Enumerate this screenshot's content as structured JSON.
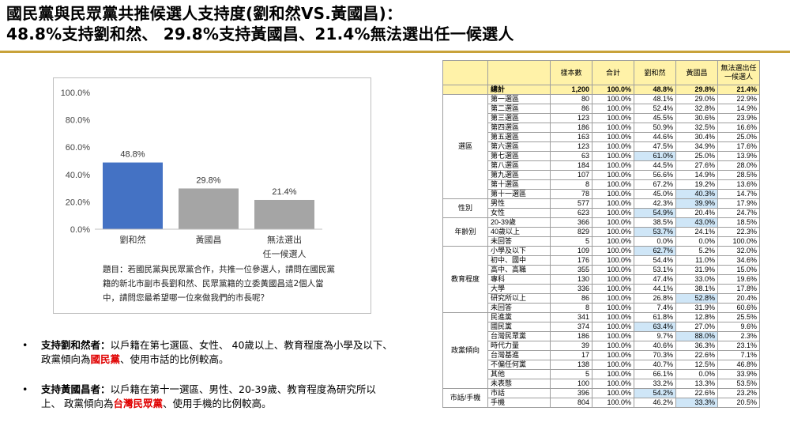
{
  "title_line1": "國民黨與民眾黨共推候選人支持度(劉和然VS.黃國昌)：",
  "title_line2": "48.8%支持劉和然、 29.8%支持黃國昌、21.4%無法選出任一候選人",
  "chart_data": {
    "type": "bar",
    "categories": [
      "劉和然",
      "黃國昌",
      "無法選出任一候選人"
    ],
    "category_lines": [
      [
        "劉和然"
      ],
      [
        "黃國昌"
      ],
      [
        "無法選出",
        "任一候選人"
      ]
    ],
    "values": [
      48.8,
      29.8,
      21.4
    ],
    "value_labels": [
      "48.8%",
      "29.8%",
      "21.4%"
    ],
    "bar_colors": [
      "#4472c4",
      "#a5a5a5",
      "#a5a5a5"
    ],
    "ylim": [
      0,
      100
    ],
    "yticks": [
      0,
      20,
      40,
      60,
      80,
      100
    ],
    "ytick_labels": [
      "0.0%",
      "20.0%",
      "40.0%",
      "60.0%",
      "80.0%",
      "100.0%"
    ],
    "grid": false,
    "title": "",
    "xlabel": "",
    "ylabel": ""
  },
  "note": "題目：若國民黨與民眾黨合作，共推一位參選人，請問在國民黨籍的新北市副市長劉和然、民眾黨籍的立委黃國昌這2個人當中，請問您最希望哪一位來做我們的市長呢？",
  "bullets": [
    {
      "dot": "•",
      "lead": "支持劉和然者：",
      "text_a": "以戶籍在第七選區、女性、 40歲以上、教育程度為小學及以下、 政黨傾向為",
      "highlight": "國民黨",
      "text_b": "、使用市話的比例較高。"
    },
    {
      "dot": "•",
      "lead": "支持黃國昌者：",
      "text_a": "以戶籍在第十一選區、男性、20-39歲、教育程度為研究所以上、 政黨傾向為",
      "highlight": "台灣民眾黨",
      "text_b": "、使用手機的比例較高。"
    }
  ],
  "table": {
    "headers": [
      "樣本數",
      "合計",
      "劉和然",
      "黃國昌",
      "無法選出任一候選人"
    ],
    "total": {
      "label": "總計",
      "values": [
        "1,200",
        "100.0%",
        "48.8%",
        "29.8%",
        "21.4%"
      ]
    },
    "groups": [
      {
        "name": "選區",
        "rows": [
          {
            "label": "第一選區",
            "values": [
              "80",
              "100.0%",
              "48.1%",
              "29.0%",
              "22.9%"
            ],
            "hl": -1
          },
          {
            "label": "第二選區",
            "values": [
              "86",
              "100.0%",
              "52.4%",
              "32.8%",
              "14.9%"
            ],
            "hl": -1
          },
          {
            "label": "第三選區",
            "values": [
              "123",
              "100.0%",
              "45.5%",
              "30.6%",
              "23.9%"
            ],
            "hl": -1
          },
          {
            "label": "第四選區",
            "values": [
              "186",
              "100.0%",
              "50.9%",
              "32.5%",
              "16.6%"
            ],
            "hl": -1
          },
          {
            "label": "第五選區",
            "values": [
              "163",
              "100.0%",
              "44.6%",
              "30.4%",
              "25.0%"
            ],
            "hl": -1
          },
          {
            "label": "第六選區",
            "values": [
              "123",
              "100.0%",
              "47.5%",
              "34.9%",
              "17.6%"
            ],
            "hl": -1
          },
          {
            "label": "第七選區",
            "values": [
              "63",
              "100.0%",
              "61.0%",
              "25.0%",
              "13.9%"
            ],
            "hl": 2
          },
          {
            "label": "第八選區",
            "values": [
              "184",
              "100.0%",
              "44.5%",
              "27.6%",
              "28.0%"
            ],
            "hl": -1
          },
          {
            "label": "第九選區",
            "values": [
              "107",
              "100.0%",
              "56.6%",
              "14.9%",
              "28.5%"
            ],
            "hl": -1
          },
          {
            "label": "第十選區",
            "values": [
              "8",
              "100.0%",
              "67.2%",
              "19.2%",
              "13.6%"
            ],
            "hl": -1
          },
          {
            "label": "第十一選區",
            "values": [
              "78",
              "100.0%",
              "45.0%",
              "40.3%",
              "14.7%"
            ],
            "hl": 3
          }
        ]
      },
      {
        "name": "性別",
        "rows": [
          {
            "label": "男性",
            "values": [
              "577",
              "100.0%",
              "42.3%",
              "39.9%",
              "17.9%"
            ],
            "hl": 3
          },
          {
            "label": "女性",
            "values": [
              "623",
              "100.0%",
              "54.9%",
              "20.4%",
              "24.7%"
            ],
            "hl": 2
          }
        ]
      },
      {
        "name": "年齡別",
        "rows": [
          {
            "label": "20-39歲",
            "values": [
              "366",
              "100.0%",
              "38.5%",
              "43.0%",
              "18.5%"
            ],
            "hl": 3
          },
          {
            "label": "40歲以上",
            "values": [
              "829",
              "100.0%",
              "53.7%",
              "24.1%",
              "22.3%"
            ],
            "hl": 2
          },
          {
            "label": "未回答",
            "values": [
              "5",
              "100.0%",
              "0.0%",
              "0.0%",
              "100.0%"
            ],
            "hl": -1
          }
        ]
      },
      {
        "name": "教育程度",
        "rows": [
          {
            "label": "小學及以下",
            "values": [
              "109",
              "100.0%",
              "62.7%",
              "5.2%",
              "32.0%"
            ],
            "hl": 2
          },
          {
            "label": "初中、國中",
            "values": [
              "176",
              "100.0%",
              "54.4%",
              "11.0%",
              "34.6%"
            ],
            "hl": -1
          },
          {
            "label": "高中、高職",
            "values": [
              "355",
              "100.0%",
              "53.1%",
              "31.9%",
              "15.0%"
            ],
            "hl": -1
          },
          {
            "label": "專科",
            "values": [
              "130",
              "100.0%",
              "47.4%",
              "33.0%",
              "19.6%"
            ],
            "hl": -1
          },
          {
            "label": "大學",
            "values": [
              "336",
              "100.0%",
              "44.1%",
              "38.1%",
              "17.8%"
            ],
            "hl": -1
          },
          {
            "label": "研究所以上",
            "values": [
              "86",
              "100.0%",
              "26.8%",
              "52.8%",
              "20.4%"
            ],
            "hl": 3
          },
          {
            "label": "未回答",
            "values": [
              "8",
              "100.0%",
              "7.4%",
              "31.9%",
              "60.6%"
            ],
            "hl": -1
          }
        ]
      },
      {
        "name": "政黨傾向",
        "rows": [
          {
            "label": "民進黨",
            "values": [
              "341",
              "100.0%",
              "61.8%",
              "12.8%",
              "25.5%"
            ],
            "hl": -1
          },
          {
            "label": "國民黨",
            "values": [
              "374",
              "100.0%",
              "63.4%",
              "27.0%",
              "9.6%"
            ],
            "hl": 2
          },
          {
            "label": "台灣民眾黨",
            "values": [
              "186",
              "100.0%",
              "9.7%",
              "88.0%",
              "2.3%"
            ],
            "hl": 3
          },
          {
            "label": "時代力量",
            "values": [
              "39",
              "100.0%",
              "40.6%",
              "36.3%",
              "23.1%"
            ],
            "hl": -1
          },
          {
            "label": "台灣基進",
            "values": [
              "17",
              "100.0%",
              "70.3%",
              "22.6%",
              "7.1%"
            ],
            "hl": -1
          },
          {
            "label": "不偏任何黨",
            "values": [
              "138",
              "100.0%",
              "40.7%",
              "12.5%",
              "46.8%"
            ],
            "hl": -1
          },
          {
            "label": "其他",
            "values": [
              "5",
              "100.0%",
              "66.1%",
              "0.0%",
              "33.9%"
            ],
            "hl": -1
          },
          {
            "label": "未表態",
            "values": [
              "100",
              "100.0%",
              "33.2%",
              "13.3%",
              "53.5%"
            ],
            "hl": -1
          }
        ]
      },
      {
        "name": "市話/手機",
        "rows": [
          {
            "label": "市話",
            "values": [
              "396",
              "100.0%",
              "54.2%",
              "22.6%",
              "23.2%"
            ],
            "hl": 2
          },
          {
            "label": "手機",
            "values": [
              "804",
              "100.0%",
              "46.2%",
              "33.3%",
              "20.5%"
            ],
            "hl": 3
          }
        ]
      }
    ]
  }
}
